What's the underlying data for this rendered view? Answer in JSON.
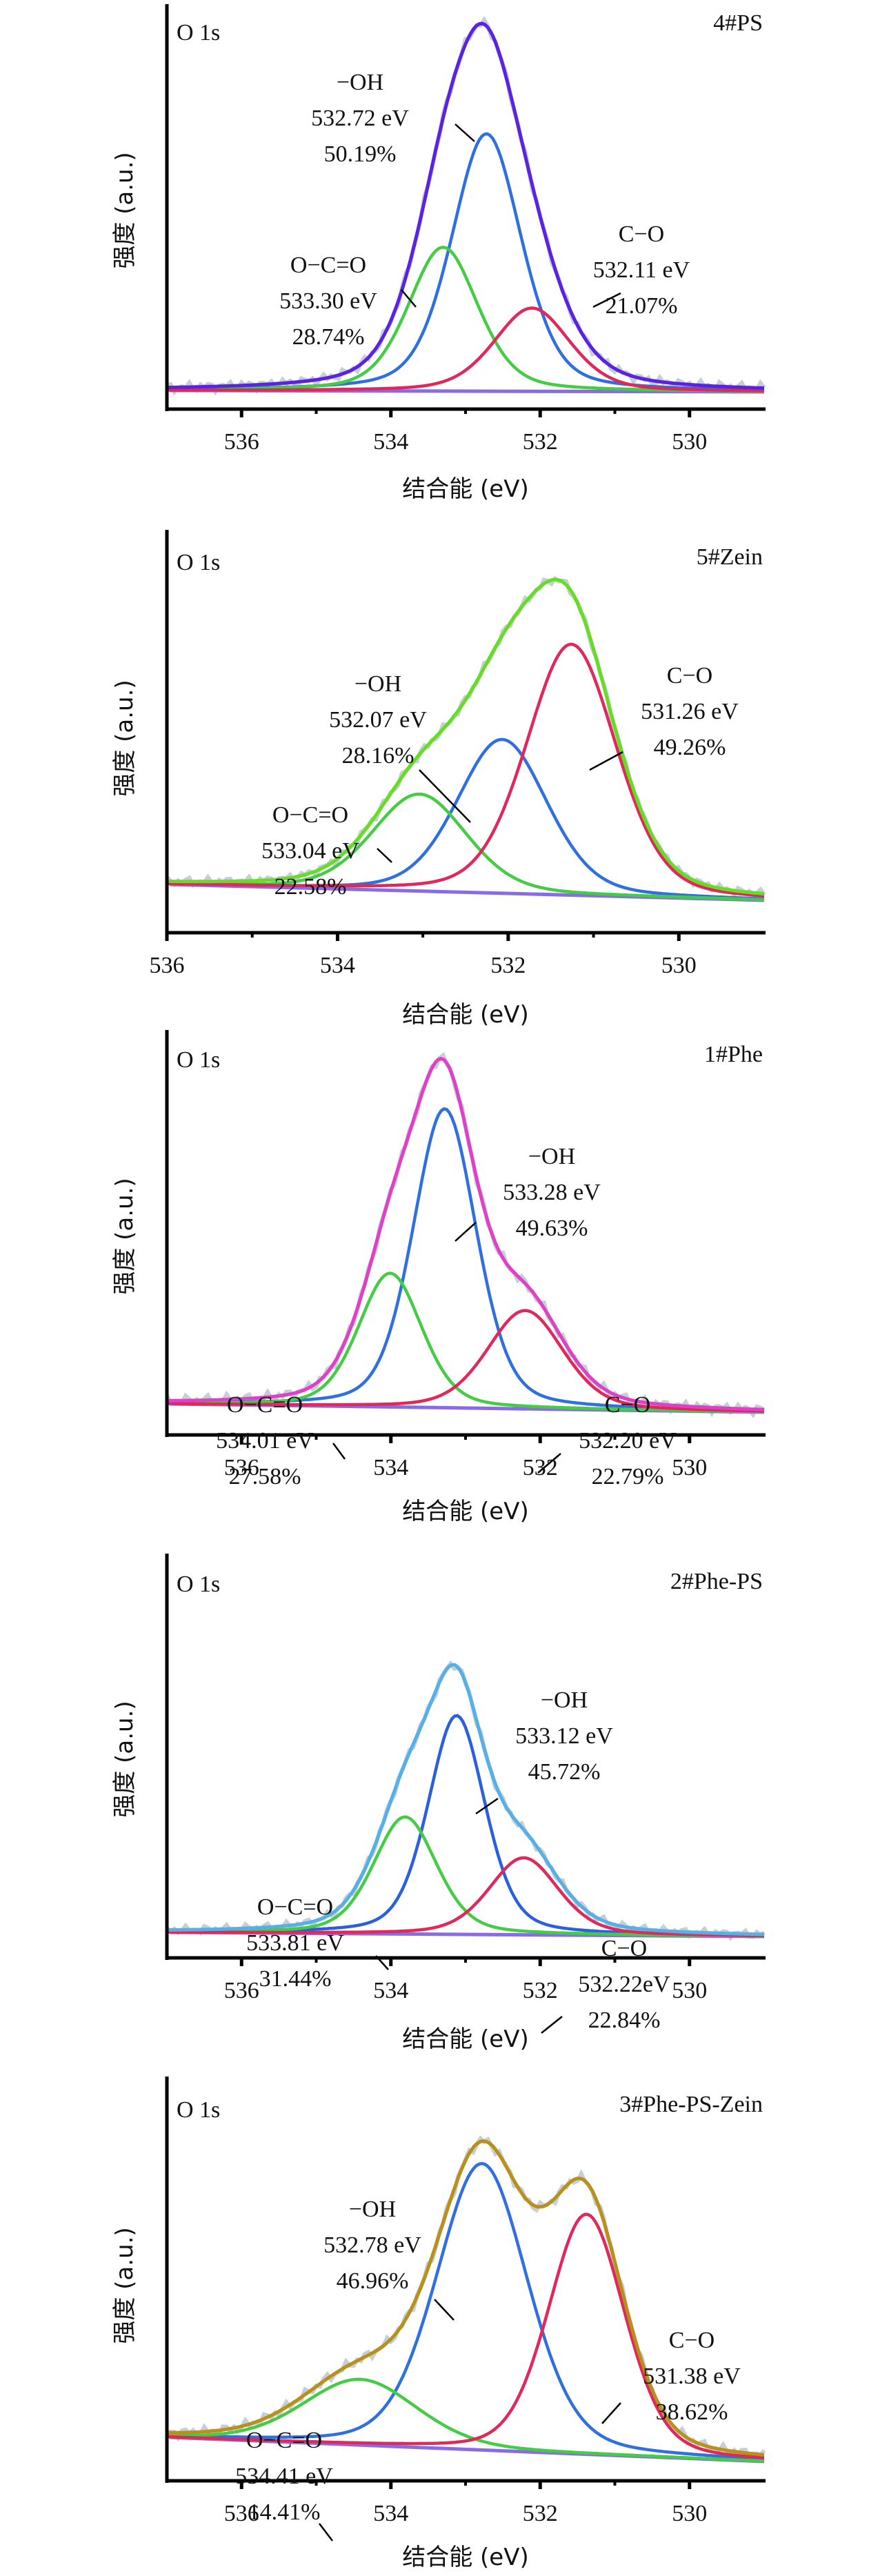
{
  "figure": {
    "y_axis_label": "强度 (a.u.)",
    "x_axis_label": "结合能 (eV)"
  },
  "chart_data": [
    {
      "type": "line",
      "title": "4#PS",
      "corner_label": "O 1s",
      "xlabel": "结合能 (eV)",
      "ylabel": "强度 (a.u.)",
      "xlim": [
        537,
        529
      ],
      "x_ticks": [
        536,
        534,
        532,
        530
      ],
      "x_ticks_minor": [
        535,
        533,
        531
      ],
      "y_ticks": [],
      "grid": false,
      "envelope_color": "#5b22e2",
      "series": [
        {
          "name": "−OH",
          "center_eV": 532.72,
          "center_label": "532.72 eV",
          "area_percent": 50.19,
          "area_label": "50.19%",
          "rel_height": 0.68,
          "color": "#2f6fe0"
        },
        {
          "name": "O−C=O",
          "center_eV": 533.3,
          "center_label": "533.30 eV",
          "area_percent": 28.74,
          "area_label": "28.74%",
          "rel_height": 0.38,
          "color": "#44cc44"
        },
        {
          "name": "C−O",
          "center_eV": 532.11,
          "center_label": "532.11 eV",
          "area_percent": 21.07,
          "area_label": "21.07%",
          "rel_height": 0.22,
          "color": "#e0285a"
        }
      ],
      "background_color": "#8a6be6"
    },
    {
      "type": "line",
      "title": "5#Zein",
      "corner_label": "O 1s",
      "xlabel": "结合能 (eV)",
      "ylabel": "强度 (a.u.)",
      "xlim": [
        536,
        529
      ],
      "x_ticks": [
        536,
        534,
        532,
        530
      ],
      "x_ticks_minor": [
        535,
        533,
        531
      ],
      "y_ticks": [],
      "grid": false,
      "envelope_color": "#66dd22",
      "series": [
        {
          "name": "−OH",
          "center_eV": 532.07,
          "center_label": "532.07 eV",
          "area_percent": 28.16,
          "area_label": "28.16%",
          "rel_height": 0.46,
          "color": "#2f6fe0"
        },
        {
          "name": "O−C=O",
          "center_eV": 533.04,
          "center_label": "533.04 eV",
          "area_percent": 22.58,
          "area_label": "22.58%",
          "rel_height": 0.29,
          "color": "#44cc44"
        },
        {
          "name": "C−O",
          "center_eV": 531.26,
          "center_label": "531.26 eV",
          "area_percent": 49.26,
          "area_label": "49.26%",
          "rel_height": 0.75,
          "color": "#e0285a"
        }
      ],
      "background_color": "#8a6be6"
    },
    {
      "type": "line",
      "title": "1#Phe",
      "corner_label": "O 1s",
      "xlabel": "结合能 (eV)",
      "ylabel": "强度 (a.u.)",
      "xlim": [
        537,
        529
      ],
      "x_ticks": [
        536,
        534,
        532,
        530
      ],
      "x_ticks_minor": [
        535,
        533,
        531
      ],
      "y_ticks": [],
      "grid": false,
      "envelope_color": "#e040c8",
      "series": [
        {
          "name": "−OH",
          "center_eV": 533.28,
          "center_label": "533.28 eV",
          "area_percent": 49.63,
          "area_label": "49.63%",
          "rel_height": 0.76,
          "color": "#2f6fe0"
        },
        {
          "name": "O−C=O",
          "center_eV": 534.01,
          "center_label": "534.01 eV",
          "area_percent": 27.58,
          "area_label": "27.58%",
          "rel_height": 0.34,
          "color": "#44cc44"
        },
        {
          "name": "C−O",
          "center_eV": 532.2,
          "center_label": "532.20 eV",
          "area_percent": 22.79,
          "area_label": "22.79%",
          "rel_height": 0.25,
          "color": "#e0285a"
        }
      ],
      "background_color": "#8a6be6"
    },
    {
      "type": "line",
      "title": "2#Phe-PS",
      "corner_label": "O 1s",
      "xlabel": "结合能 (eV)",
      "ylabel": "强度 (a.u.)",
      "xlim": [
        537,
        529
      ],
      "x_ticks": [
        536,
        534,
        532,
        530
      ],
      "x_ticks_minor": [
        535,
        533,
        531
      ],
      "y_ticks": [],
      "grid": false,
      "envelope_color": "#56b0e8",
      "series": [
        {
          "name": "−OH",
          "center_eV": 533.12,
          "center_label": "533.12 eV",
          "area_percent": 45.72,
          "area_label": "45.72%",
          "rel_height": 0.71,
          "color": "#2a5fe0"
        },
        {
          "name": "O−C=O",
          "center_eV": 533.81,
          "center_label": "533.81 eV",
          "area_percent": 31.44,
          "area_label": "31.44%",
          "rel_height": 0.38,
          "color": "#44cc44"
        },
        {
          "name": "C−O",
          "center_eV": 532.22,
          "center_label": "532.22eV",
          "area_percent": 22.84,
          "area_label": "22.84%",
          "rel_height": 0.25,
          "color": "#e0285a"
        }
      ],
      "background_color": "#8a6be6"
    },
    {
      "type": "line",
      "title": "3#Phe-PS-Zein",
      "corner_label": "O 1s",
      "xlabel": "结合能 (eV)",
      "ylabel": "强度 (a.u.)",
      "xlim": [
        537,
        529
      ],
      "x_ticks": [
        536,
        534,
        532,
        530
      ],
      "x_ticks_minor": [
        535,
        533,
        531
      ],
      "y_ticks": [],
      "grid": false,
      "envelope_color": "#b8901a",
      "series": [
        {
          "name": "−OH",
          "center_eV": 532.78,
          "center_label": "532.78 eV",
          "area_percent": 46.96,
          "area_label": "46.96%",
          "rel_height": 0.74,
          "color": "#2f6fe0"
        },
        {
          "name": "O−C=O",
          "center_eV": 534.41,
          "center_label": "534.41 eV",
          "area_percent": 14.41,
          "area_label": "14.41%",
          "rel_height": 0.17,
          "color": "#44cc44"
        },
        {
          "name": "C−O",
          "center_eV": 531.38,
          "center_label": "531.38 eV",
          "area_percent": 38.62,
          "area_label": "38.62%",
          "rel_height": 0.62,
          "color": "#e0285a"
        }
      ],
      "background_color": "#8a6be6"
    }
  ]
}
